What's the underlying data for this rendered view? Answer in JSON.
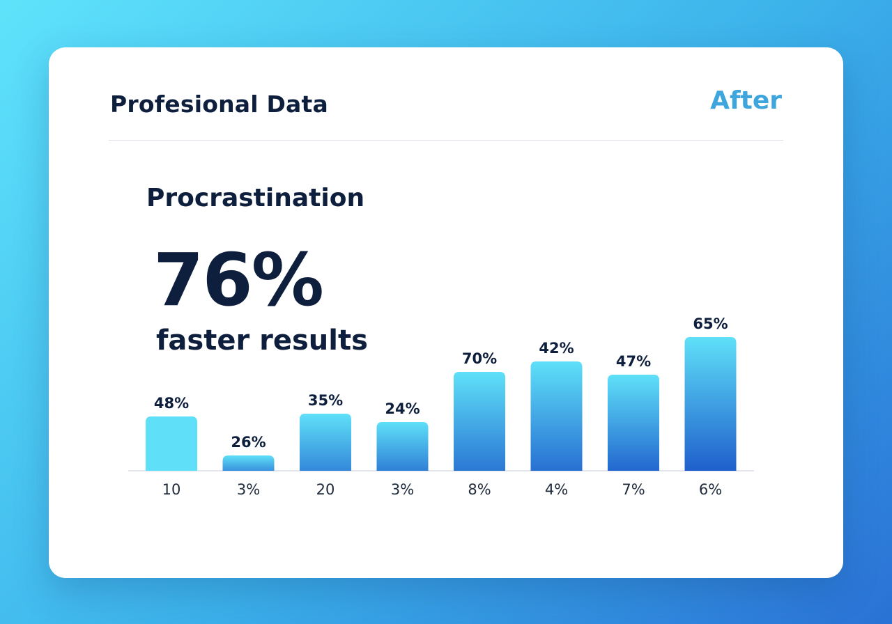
{
  "card": {
    "title": "Profesional Data",
    "mode_label": "After"
  },
  "section": {
    "title": "Procrastination",
    "stat_value": "76%",
    "stat_caption": "faster results"
  },
  "colors": {
    "bar_light": "#5fe0f8",
    "bar_dark": "#1f5fcc",
    "baseline": "#d9dee5"
  },
  "chart_data": {
    "type": "bar",
    "categories": [
      "10",
      "3%",
      "20",
      "3%",
      "8%",
      "4%",
      "7%",
      "6%"
    ],
    "values": [
      48,
      26,
      35,
      24,
      70,
      42,
      47,
      65
    ],
    "value_labels": [
      "48%",
      "26%",
      "35%",
      "24%",
      "70%",
      "42%",
      "47%",
      "65%"
    ],
    "bar_heights_visual": [
      78,
      22,
      82,
      70,
      142,
      157,
      138,
      192
    ],
    "title": "",
    "xlabel": "",
    "ylabel": "",
    "grid": false,
    "legend": "none"
  }
}
